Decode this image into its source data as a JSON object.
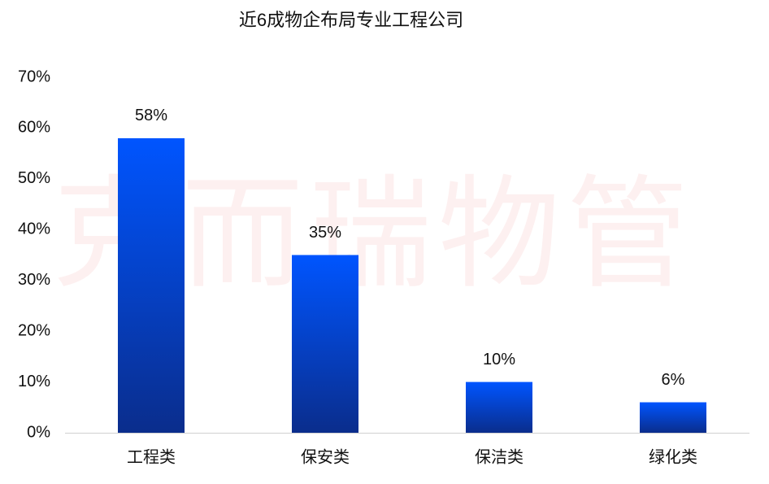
{
  "chart_data": {
    "type": "bar",
    "title": "近6成物企布局专业工程公司",
    "watermark": "克而瑞物管",
    "categories": [
      "工程类",
      "保安类",
      "保洁类",
      "绿化类"
    ],
    "values": [
      58,
      35,
      10,
      6
    ],
    "value_labels": [
      "58%",
      "35%",
      "10%",
      "6%"
    ],
    "color": "#0055ff",
    "ylim": [
      0,
      70
    ],
    "yticks": [
      {
        "value": 0,
        "label": "0%"
      },
      {
        "value": 10,
        "label": "10%"
      },
      {
        "value": 20,
        "label": "20%"
      },
      {
        "value": 30,
        "label": "30%"
      },
      {
        "value": 40,
        "label": "40%"
      },
      {
        "value": 50,
        "label": "50%"
      },
      {
        "value": 60,
        "label": "60%"
      },
      {
        "value": 70,
        "label": "70%"
      }
    ],
    "grid": false
  }
}
